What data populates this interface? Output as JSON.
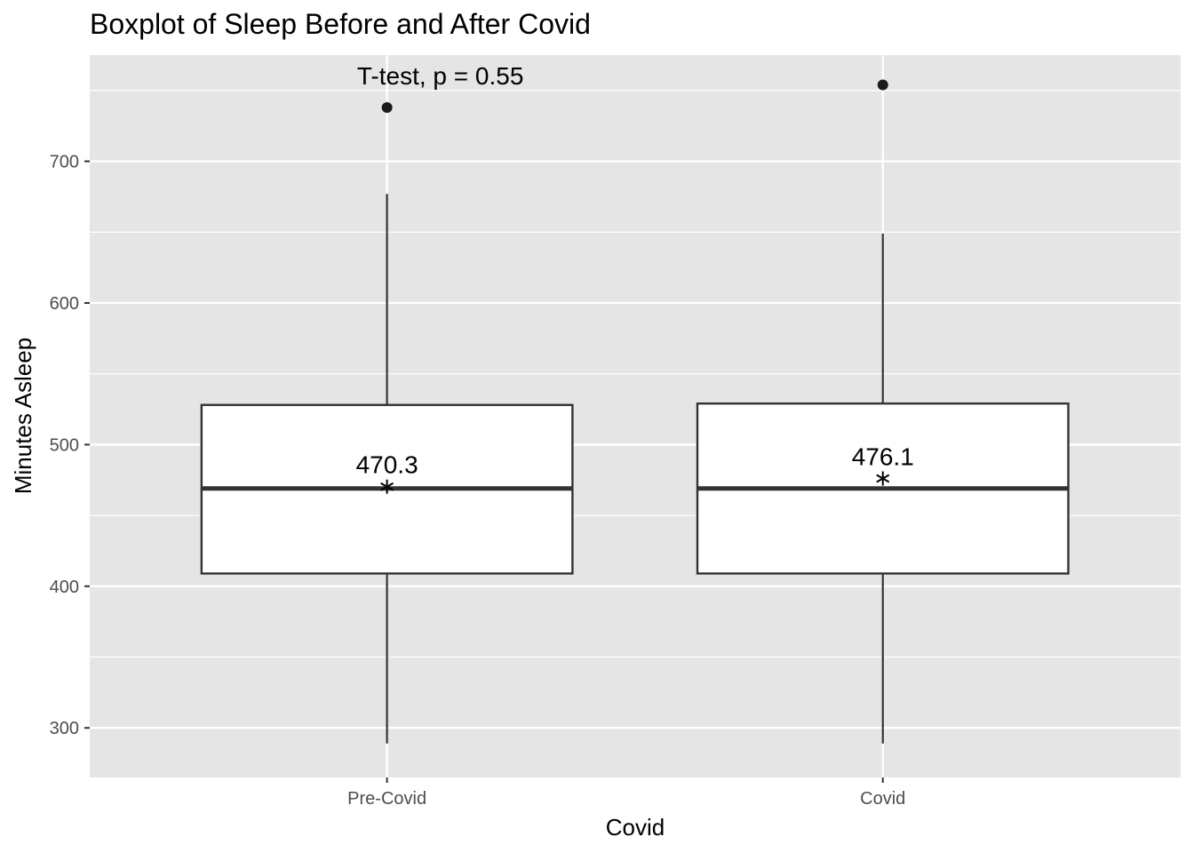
{
  "chart_data": {
    "type": "boxplot",
    "title": "Boxplot of Sleep Before and After Covid",
    "xlabel": "Covid",
    "ylabel": "Minutes Asleep",
    "ylim": [
      265,
      775
    ],
    "yticks": [
      300,
      400,
      500,
      600,
      700
    ],
    "grid": true,
    "categories": [
      "Pre-Covid",
      "Covid"
    ],
    "boxes": [
      {
        "category": "Pre-Covid",
        "whisker_low": 289,
        "q1": 409,
        "median": 469,
        "q3": 528,
        "whisker_high": 677,
        "outliers": [
          738
        ],
        "mean": 470.3,
        "mean_label": "470.3"
      },
      {
        "category": "Covid",
        "whisker_low": 289,
        "q1": 409,
        "median": 469,
        "q3": 529,
        "whisker_high": 649,
        "outliers": [
          754
        ],
        "mean": 476.1,
        "mean_label": "476.1"
      }
    ],
    "annotation": {
      "text": "T-test, p = 0.55",
      "category": "Pre-Covid",
      "y": 760
    },
    "colors": {
      "panel": "#e5e5e5",
      "grid": "#ffffff",
      "box_fill": "#ffffff",
      "box_line": "#333333",
      "point": "#1a1a1a"
    }
  }
}
